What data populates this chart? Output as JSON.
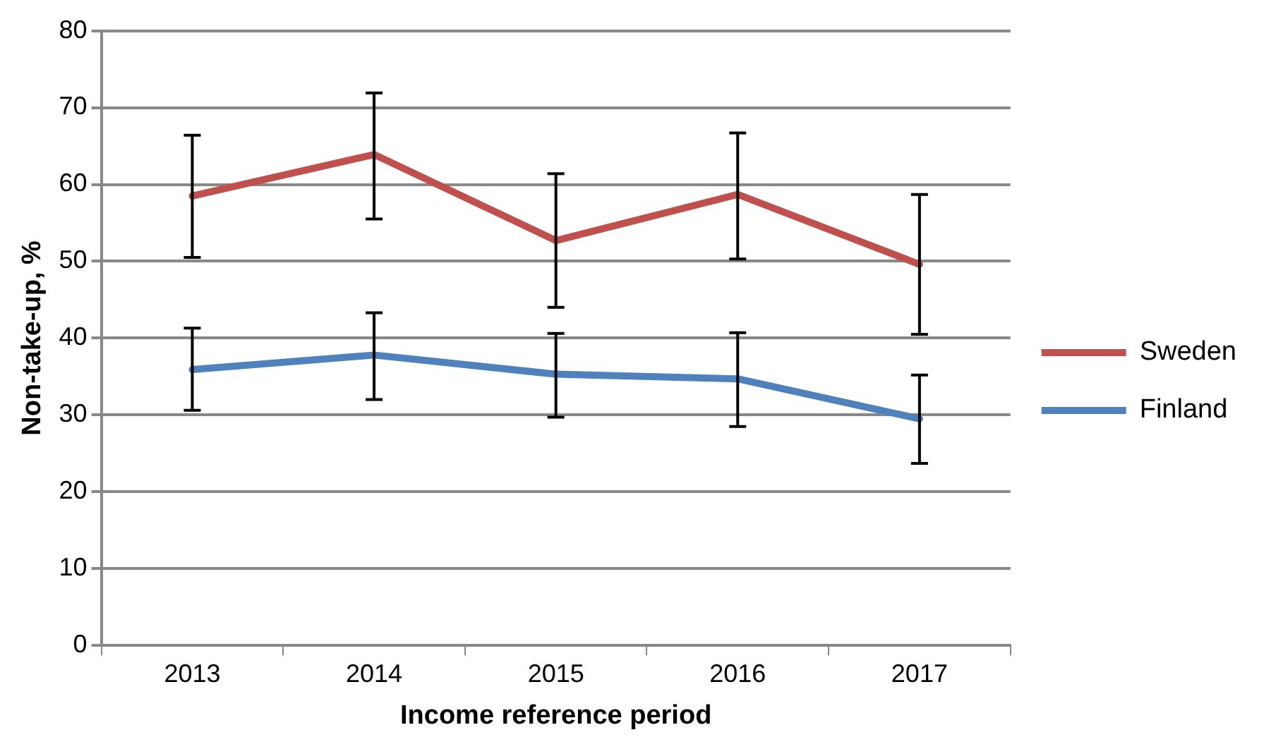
{
  "chart_data": {
    "type": "line",
    "xlabel": "Income reference period",
    "ylabel": "Non-take-up, %",
    "categories": [
      "2013",
      "2014",
      "2015",
      "2016",
      "2017"
    ],
    "series": [
      {
        "name": "Sweden",
        "color": "#c0504d",
        "values": [
          58.5,
          63.9,
          52.7,
          58.7,
          49.6
        ],
        "errors": [
          [
            50.5,
            66.4
          ],
          [
            55.5,
            71.9
          ],
          [
            44.0,
            61.4
          ],
          [
            50.3,
            66.7
          ],
          [
            40.5,
            58.7
          ]
        ]
      },
      {
        "name": "Finland",
        "color": "#4f81bd",
        "values": [
          35.9,
          37.8,
          35.3,
          34.7,
          29.5
        ],
        "errors": [
          [
            30.6,
            41.3
          ],
          [
            32.0,
            43.3
          ],
          [
            29.7,
            40.6
          ],
          [
            28.5,
            40.7
          ],
          [
            23.7,
            35.2
          ]
        ]
      }
    ],
    "ylim": [
      0,
      80
    ],
    "yticks": [
      0,
      10,
      20,
      30,
      40,
      50,
      60,
      70,
      80
    ],
    "grid": "y",
    "legend": "right",
    "marker": "none",
    "line_style": "solid"
  }
}
